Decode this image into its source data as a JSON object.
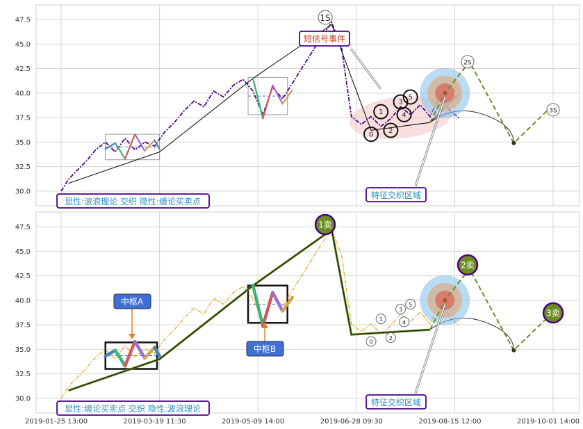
{
  "chart_data": [
    {
      "type": "line",
      "panel": "top",
      "ylim": [
        28.5,
        49
      ],
      "yticks": [
        30.0,
        32.5,
        35.0,
        37.5,
        40.0,
        42.5,
        45.0,
        47.5
      ],
      "grid": true,
      "caption": "显性:波浪理论 交织 隐性:缠论买卖点",
      "annotations": {
        "top_point": "1S",
        "short_signal": "短信号事件",
        "feature_zone": "特征交织区域",
        "sell_2": "2S",
        "sell_3": "3S",
        "waves": [
          "0",
          "1",
          "2",
          "3",
          "4",
          "5"
        ]
      },
      "series": [
        {
          "color": "#4b0082",
          "style": "dash-dot",
          "x": [
            0,
            3,
            6,
            10,
            14,
            18,
            22,
            26,
            30,
            34,
            38,
            42,
            46,
            50,
            54,
            58,
            62,
            66,
            70,
            74,
            78,
            82,
            86,
            90,
            94,
            98,
            102,
            106,
            110,
            114,
            118,
            122,
            126,
            130,
            134,
            138,
            142,
            146,
            150,
            154,
            158,
            162
          ],
          "values": [
            30.0,
            31.2,
            32.0,
            33.0,
            34.2,
            35.0,
            34.0,
            35.4,
            34.2,
            35.0,
            34.6,
            36.0,
            37.0,
            38.2,
            39.2,
            38.6,
            40.2,
            39.6,
            40.8,
            41.4,
            40.2,
            37.8,
            40.6,
            39.4,
            41.0,
            42.6,
            44.2,
            45.8,
            47.2,
            44.6,
            37.6,
            36.8,
            37.6,
            36.6,
            37.4,
            38.6,
            37.8,
            38.8,
            37.6,
            39.8,
            38.2,
            37.4
          ]
        }
      ],
      "overlays": {
        "trend_line": {
          "x": [
            3,
            40,
            78,
            110,
            126,
            150,
            162
          ],
          "values": [
            30.8,
            34.0,
            41.5,
            47.0,
            36.2,
            37.0,
            40.0
          ]
        },
        "wave_a": {
          "x": [
            18,
            22,
            26,
            30,
            34,
            38,
            40
          ],
          "values": [
            34.3,
            34.9,
            33.3,
            35.8,
            34.1,
            35.2,
            34.3
          ]
        },
        "wave_b": {
          "x": [
            78,
            82,
            86,
            90,
            94
          ],
          "values": [
            41.5,
            37.4,
            40.8,
            38.9,
            40.3
          ]
        },
        "forecast_path": {
          "x": [
            150,
            156,
            166,
            184,
            198
          ],
          "values": [
            37.0,
            40.0,
            43.2,
            34.9,
            38.3
          ]
        },
        "forecast_arc": {
          "x": [
            150,
            160,
            172,
            184
          ],
          "values": [
            37.0,
            38.3,
            37.8,
            34.9
          ]
        },
        "zone_center": {
          "x": 156,
          "y": 40.0
        }
      }
    },
    {
      "type": "line",
      "panel": "bottom",
      "ylim": [
        28.5,
        49
      ],
      "yticks": [
        30.0,
        32.5,
        35.0,
        37.5,
        40.0,
        42.5,
        45.0,
        47.5
      ],
      "grid": true,
      "xticks": [
        "2019-01-25 13:00",
        "2019-03-19 11:30",
        "2019-05-09 14:00",
        "2019-06-28 09:30",
        "2019-08-15 12:00",
        "2019-10-01 14:00"
      ],
      "caption": "显性:缠论买卖点 交织 隐性:波浪理论",
      "annotations": {
        "sell_1": "1卖",
        "sell_2": "2卖",
        "sell_3": "3卖",
        "center_a": "中枢A",
        "center_b": "中枢B",
        "feature_zone": "特征交织区域",
        "waves": [
          "0",
          "1",
          "2",
          "3",
          "4",
          "5"
        ]
      },
      "series": [
        {
          "color": "#e8a317",
          "style": "dash-dot",
          "x": [
            0,
            3,
            6,
            10,
            14,
            18,
            22,
            26,
            30,
            34,
            38,
            42,
            46,
            50,
            54,
            58,
            62,
            66,
            70,
            74,
            78,
            82,
            86,
            90,
            94,
            98,
            102,
            106,
            110,
            114,
            118,
            122,
            126,
            130,
            134,
            138,
            142,
            146,
            150,
            154,
            158,
            162
          ],
          "values": [
            30.0,
            31.2,
            32.0,
            33.0,
            34.2,
            35.0,
            34.0,
            35.4,
            34.2,
            35.0,
            34.6,
            36.0,
            37.0,
            38.2,
            39.2,
            38.6,
            40.2,
            39.6,
            40.8,
            41.4,
            40.2,
            37.8,
            40.6,
            39.4,
            41.0,
            42.6,
            44.2,
            45.8,
            47.2,
            44.6,
            37.6,
            36.8,
            37.6,
            36.6,
            37.4,
            38.6,
            37.8,
            38.8,
            37.6,
            39.8,
            38.2,
            37.4
          ]
        }
      ],
      "overlays": {
        "trend_line": {
          "x": [
            3,
            40,
            78,
            110,
            118,
            150
          ],
          "values": [
            30.8,
            34.0,
            41.5,
            47.2,
            36.5,
            37.0
          ]
        },
        "wave_a": {
          "x": [
            18,
            22,
            26,
            30,
            34,
            38,
            40
          ],
          "values": [
            34.3,
            34.9,
            33.3,
            35.8,
            34.1,
            35.2,
            34.3
          ]
        },
        "wave_b": {
          "x": [
            78,
            82,
            86,
            90,
            94
          ],
          "values": [
            41.5,
            37.4,
            40.8,
            38.9,
            40.3
          ]
        },
        "forecast_path": {
          "x": [
            150,
            156,
            166,
            184,
            198
          ],
          "values": [
            37.0,
            40.0,
            43.2,
            34.9,
            38.3
          ]
        },
        "forecast_arc": {
          "x": [
            150,
            160,
            172,
            184
          ],
          "values": [
            37.0,
            38.3,
            37.8,
            34.9
          ]
        },
        "zone_center": {
          "x": 156,
          "y": 40.0
        }
      }
    }
  ],
  "colors": {
    "price_top": "#4b0082",
    "price_bottom": "#e8a317",
    "sell_marker": "#6b8e23",
    "forecast": "#6b8e23",
    "callout_border": "#4b0082",
    "callout_fill": "#3f6fd6",
    "zone_blue": "#7fbfea",
    "zone_red": "#e05050",
    "highlight_pink": "#f4b8b8"
  }
}
